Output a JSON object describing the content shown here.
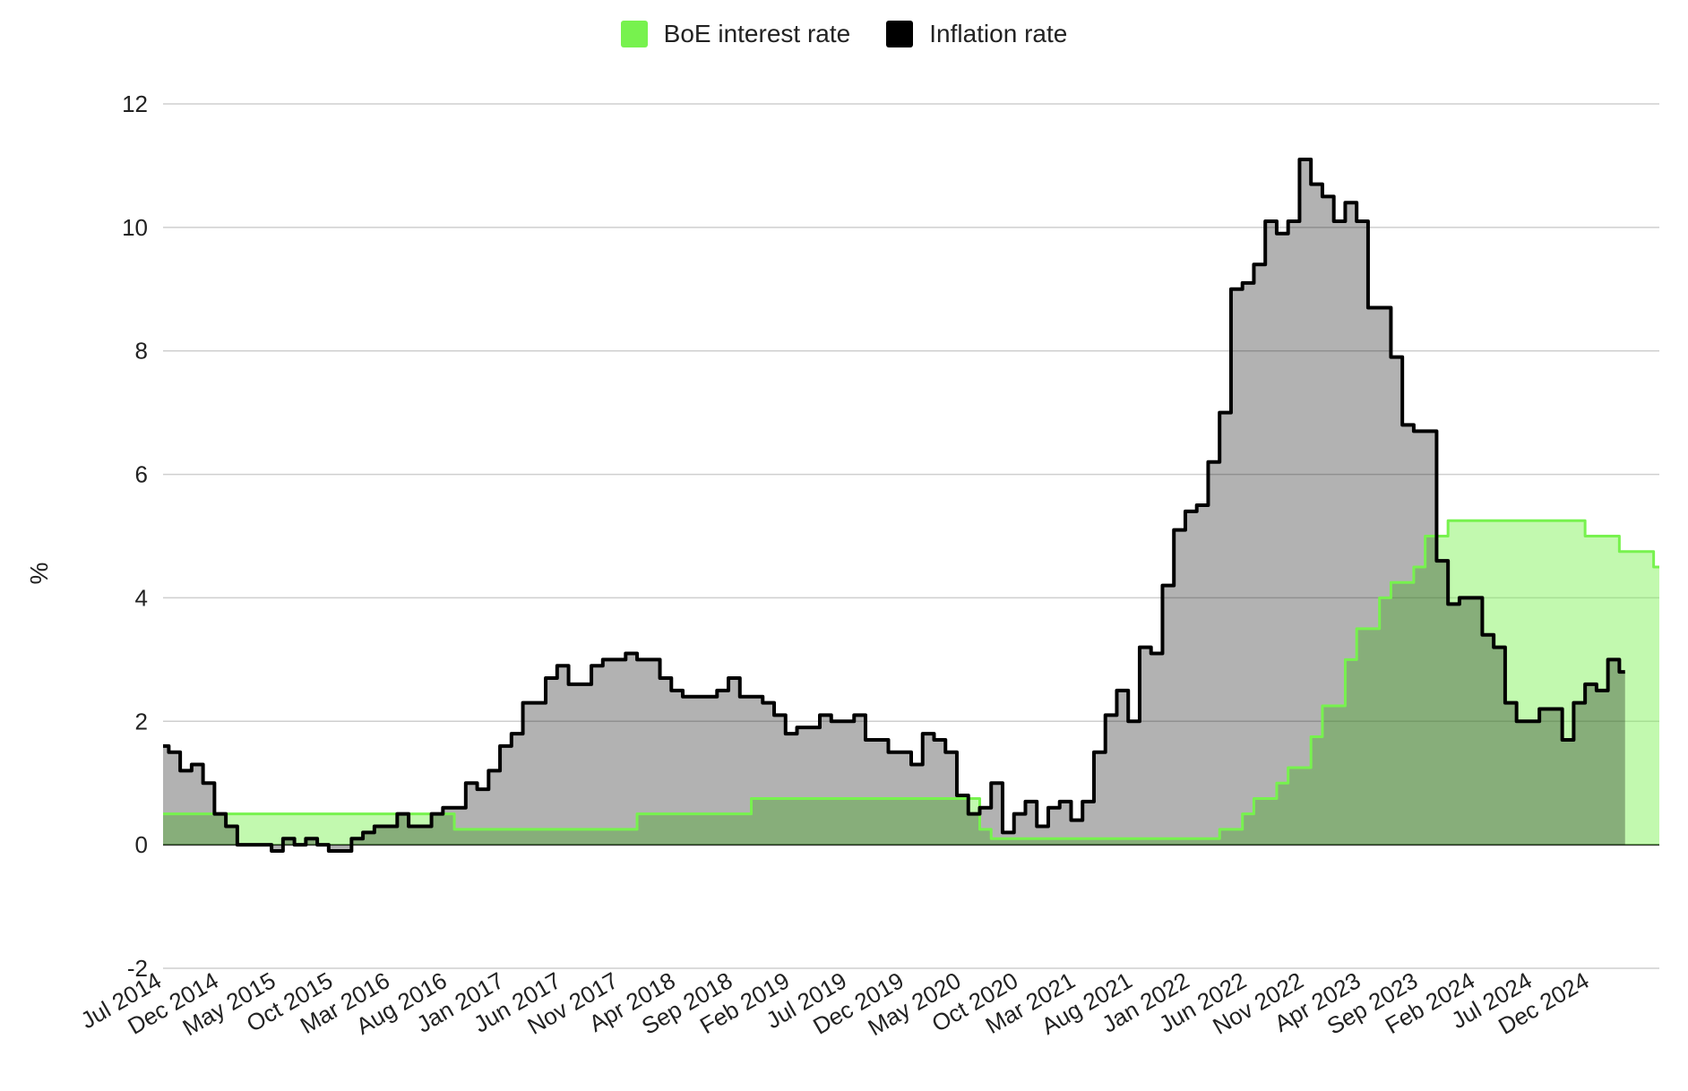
{
  "chart_data": {
    "type": "area",
    "xlabel": "",
    "ylabel": "%",
    "ylim": [
      -2,
      12
    ],
    "yticks": [
      -2,
      0,
      2,
      4,
      6,
      8,
      10,
      12
    ],
    "x_tick_labels": [
      "Jul 2014",
      "Dec 2014",
      "May 2015",
      "Oct 2015",
      "Mar 2016",
      "Aug 2016",
      "Jan 2017",
      "Jun 2017",
      "Nov 2017",
      "Apr 2018",
      "Sep 2018",
      "Feb 2019",
      "Jul 2019",
      "Dec 2019",
      "May 2020",
      "Oct 2020",
      "Mar 2021",
      "Aug 2021",
      "Jan 2022",
      "Jun 2022",
      "Nov 2022",
      "Apr 2023",
      "Sep 2023",
      "Feb 2024",
      "Jul 2024",
      "Dec 2024"
    ],
    "grid": true,
    "legend_position": "top",
    "series": [
      {
        "name": "BoE interest rate",
        "color": "#77f24e",
        "values": [
          0.5,
          0.5,
          0.5,
          0.5,
          0.5,
          0.5,
          0.5,
          0.5,
          0.5,
          0.5,
          0.5,
          0.5,
          0.5,
          0.5,
          0.5,
          0.5,
          0.5,
          0.5,
          0.5,
          0.5,
          0.5,
          0.5,
          0.5,
          0.5,
          0.5,
          0.5,
          0.25,
          0.25,
          0.25,
          0.25,
          0.25,
          0.25,
          0.25,
          0.25,
          0.25,
          0.25,
          0.25,
          0.25,
          0.25,
          0.25,
          0.25,
          0.25,
          0.5,
          0.5,
          0.5,
          0.5,
          0.5,
          0.5,
          0.5,
          0.5,
          0.5,
          0.5,
          0.75,
          0.75,
          0.75,
          0.75,
          0.75,
          0.75,
          0.75,
          0.75,
          0.75,
          0.75,
          0.75,
          0.75,
          0.75,
          0.75,
          0.75,
          0.75,
          0.75,
          0.75,
          0.75,
          0.75,
          0.25,
          0.1,
          0.1,
          0.1,
          0.1,
          0.1,
          0.1,
          0.1,
          0.1,
          0.1,
          0.1,
          0.1,
          0.1,
          0.1,
          0.1,
          0.1,
          0.1,
          0.1,
          0.1,
          0.1,
          0.1,
          0.25,
          0.25,
          0.5,
          0.75,
          0.75,
          1.0,
          1.25,
          1.25,
          1.75,
          2.25,
          2.25,
          3.0,
          3.5,
          3.5,
          4.0,
          4.25,
          4.25,
          4.5,
          5.0,
          5.0,
          5.25,
          5.25,
          5.25,
          5.25,
          5.25,
          5.25,
          5.25,
          5.25,
          5.25,
          5.25,
          5.25,
          5.25,
          5.0,
          5.0,
          5.0,
          4.75,
          4.75,
          4.75,
          4.5
        ]
      },
      {
        "name": "Inflation rate",
        "color": "#000000",
        "values": [
          1.6,
          1.5,
          1.2,
          1.3,
          1.0,
          0.5,
          0.3,
          0.0,
          0.0,
          0.0,
          -0.1,
          0.1,
          0.0,
          0.1,
          0.0,
          -0.1,
          -0.1,
          0.1,
          0.2,
          0.3,
          0.3,
          0.5,
          0.3,
          0.3,
          0.5,
          0.6,
          0.6,
          1.0,
          0.9,
          1.2,
          1.6,
          1.8,
          2.3,
          2.3,
          2.7,
          2.9,
          2.6,
          2.6,
          2.9,
          3.0,
          3.0,
          3.1,
          3.0,
          3.0,
          2.7,
          2.5,
          2.4,
          2.4,
          2.4,
          2.5,
          2.7,
          2.4,
          2.4,
          2.3,
          2.1,
          1.8,
          1.9,
          1.9,
          2.1,
          2.0,
          2.0,
          2.1,
          1.7,
          1.7,
          1.5,
          1.5,
          1.3,
          1.8,
          1.7,
          1.5,
          0.8,
          0.5,
          0.6,
          1.0,
          0.2,
          0.5,
          0.7,
          0.3,
          0.6,
          0.7,
          0.4,
          0.7,
          1.5,
          2.1,
          2.5,
          2.0,
          3.2,
          3.1,
          4.2,
          5.1,
          5.4,
          5.5,
          6.2,
          7.0,
          9.0,
          9.1,
          9.4,
          10.1,
          9.9,
          10.1,
          11.1,
          10.7,
          10.5,
          10.1,
          10.4,
          10.1,
          8.7,
          8.7,
          7.9,
          6.8,
          6.7,
          6.7,
          4.6,
          3.9,
          4.0,
          4.0,
          3.4,
          3.2,
          2.3,
          2.0,
          2.0,
          2.2,
          2.2,
          1.7,
          2.3,
          2.6,
          2.5,
          3.0,
          2.8
        ]
      }
    ]
  }
}
